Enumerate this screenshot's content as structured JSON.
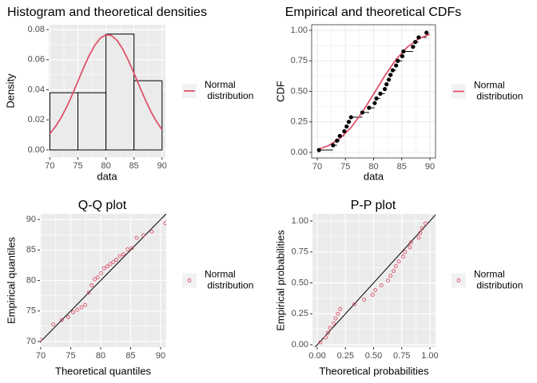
{
  "chart_data": [
    {
      "type": "histogram",
      "title": "Histogram and theoretical densities",
      "xlabel": "data",
      "ylabel": "Density",
      "bins": [
        70,
        75,
        80,
        85,
        90
      ],
      "values": [
        0.038,
        0.038,
        0.077,
        0.046
      ],
      "color": "#ebebeb",
      "series": [
        {
          "name": "Normal distribution",
          "color": "#DF536B",
          "x": [
            70,
            71,
            72,
            73,
            74,
            75,
            76,
            77,
            78,
            79,
            80,
            81,
            82,
            83,
            84,
            85,
            86,
            87,
            88,
            89,
            90
          ],
          "values": [
            0.0108,
            0.0155,
            0.0215,
            0.0286,
            0.0368,
            0.0456,
            0.0545,
            0.0627,
            0.0695,
            0.0743,
            0.0766,
            0.076,
            0.0727,
            0.067,
            0.0595,
            0.051,
            0.0421,
            0.0335,
            0.0256,
            0.0189,
            0.0135
          ]
        }
      ],
      "xlim": [
        69.8,
        90.6
      ],
      "ylim": [
        -0.0048,
        0.0832
      ],
      "xticks": [
        70,
        75,
        80,
        85,
        90
      ],
      "yticks": [
        {
          "value": 0,
          "label": "0.00"
        },
        {
          "value": 0.02,
          "label": "0.02"
        },
        {
          "value": 0.04,
          "label": "0.04"
        },
        {
          "value": 0.06,
          "label": "0.06"
        },
        {
          "value": 0.08,
          "label": "0.08"
        }
      ],
      "grid": true,
      "background": "#ebebeb",
      "legend": "right"
    },
    {
      "type": "ecdf",
      "title": "Empirical and theoretical CDFs",
      "xlabel": "data",
      "ylabel": "CDF",
      "x": [
        70.3,
        72.8,
        73.5,
        74.0,
        74.8,
        75.2,
        75.6,
        76.0,
        78.0,
        79.2,
        80.2,
        80.5,
        81.2,
        82.0,
        82.3,
        82.7,
        83.0,
        83.4,
        84.0,
        84.3,
        85.1,
        85.3,
        87.0,
        87.4,
        88.0,
        89.4
      ],
      "values": [
        0.019,
        0.058,
        0.096,
        0.135,
        0.173,
        0.212,
        0.25,
        0.288,
        0.327,
        0.365,
        0.404,
        0.442,
        0.481,
        0.519,
        0.558,
        0.596,
        0.635,
        0.673,
        0.712,
        0.75,
        0.788,
        0.827,
        0.865,
        0.904,
        0.942,
        0.981
      ],
      "color": "#000000",
      "series": [
        {
          "name": "Normal distribution",
          "color": "#DF536B",
          "x": [
            70,
            72,
            74,
            76,
            78,
            80,
            82,
            84,
            86,
            88,
            90
          ],
          "values": [
            0.024,
            0.055,
            0.113,
            0.204,
            0.329,
            0.477,
            0.628,
            0.762,
            0.863,
            0.931,
            0.969
          ]
        }
      ],
      "xlim": [
        69,
        91
      ],
      "ylim": [
        -0.046,
        1.046
      ],
      "xticks": [
        70,
        75,
        80,
        85,
        90
      ],
      "yticks": [
        {
          "value": 0,
          "label": "0.00"
        },
        0.25,
        {
          "value": 0.5,
          "label": "0.50"
        },
        0.75,
        {
          "value": 1,
          "label": "1.00"
        }
      ],
      "grid": true,
      "background": "#ffffff",
      "legend": "right"
    },
    {
      "type": "qq",
      "title": "Q-Q plot",
      "xlabel": "Theoretical quantiles",
      "ylabel": "Empirical quantiles",
      "series": [
        {
          "name": "Normal distribution",
          "color": "#DF536B",
          "x": [
            69.9,
            72.1,
            73.5,
            74.6,
            75.4,
            76.1,
            76.8,
            77.4,
            78.0,
            78.5,
            79.0,
            79.5,
            80.05,
            80.55,
            81.1,
            81.6,
            82.1,
            82.6,
            83.2,
            83.8,
            84.5,
            85.2,
            86.0,
            87.1,
            88.5,
            90.8
          ],
          "values": [
            70.3,
            72.8,
            73.5,
            74.0,
            74.8,
            75.2,
            75.6,
            76.0,
            78.0,
            79.2,
            80.2,
            80.5,
            81.2,
            82.0,
            82.3,
            82.7,
            83.0,
            83.4,
            84.0,
            84.3,
            85.1,
            85.3,
            87.0,
            87.4,
            88.0,
            89.4
          ]
        }
      ],
      "xlim": [
        69.87,
        90.93
      ],
      "ylim": [
        69.08,
        90.92
      ],
      "xticks": [
        70,
        75,
        80,
        85,
        90
      ],
      "yticks": [
        70,
        75,
        80,
        85,
        90
      ],
      "grid": true,
      "background": "#ebebeb",
      "legend": "right"
    },
    {
      "type": "pp",
      "title": "P-P plot",
      "xlabel": "Theoretical probabilities",
      "ylabel": "Empirical probabilities",
      "series": [
        {
          "name": "Normal distribution",
          "color": "#DF536B",
          "x": [
            0.027,
            0.075,
            0.095,
            0.113,
            0.145,
            0.163,
            0.183,
            0.204,
            0.329,
            0.416,
            0.492,
            0.515,
            0.569,
            0.628,
            0.65,
            0.678,
            0.698,
            0.724,
            0.762,
            0.779,
            0.822,
            0.832,
            0.901,
            0.914,
            0.931,
            0.96
          ],
          "values": [
            0.019,
            0.058,
            0.096,
            0.135,
            0.173,
            0.212,
            0.25,
            0.288,
            0.327,
            0.365,
            0.404,
            0.442,
            0.481,
            0.519,
            0.558,
            0.596,
            0.635,
            0.673,
            0.712,
            0.75,
            0.788,
            0.827,
            0.865,
            0.904,
            0.942,
            0.981
          ]
        }
      ],
      "xlim": [
        -0.043,
        1.05
      ],
      "ylim": [
        -0.019,
        1.058
      ],
      "xticks": [
        {
          "value": 0,
          "label": "0.00"
        },
        0.25,
        {
          "value": 0.5,
          "label": "0.50"
        },
        0.75,
        {
          "value": 1,
          "label": "1.00"
        }
      ],
      "yticks": [
        {
          "value": 0,
          "label": "0.00"
        },
        0.25,
        {
          "value": 0.5,
          "label": "0.50"
        },
        0.75,
        {
          "value": 1,
          "label": "1.00"
        }
      ],
      "grid": true,
      "background": "#ebebeb",
      "legend": "right"
    }
  ]
}
